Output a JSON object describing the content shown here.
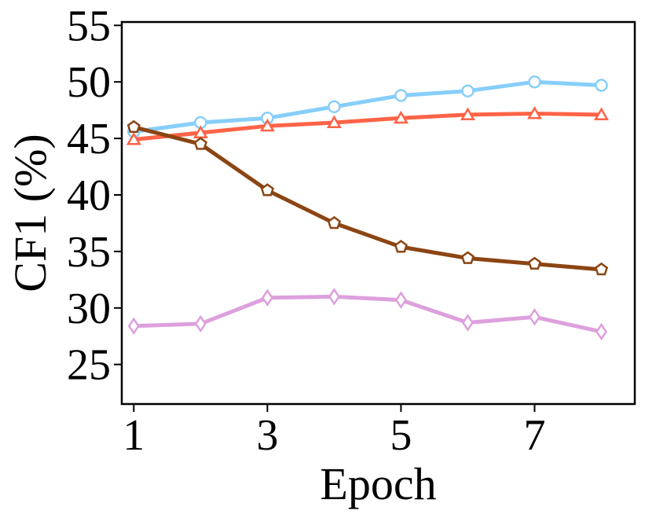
{
  "chart_data": {
    "type": "line",
    "title": "",
    "xlabel": "Epoch",
    "ylabel": "CF1 (%)",
    "x": [
      1,
      2,
      3,
      4,
      5,
      6,
      7,
      8
    ],
    "xticks": [
      1,
      3,
      5,
      7
    ],
    "yticks": [
      25,
      30,
      35,
      40,
      45,
      50,
      55
    ],
    "xlim": [
      0.82,
      8.5
    ],
    "ylim": [
      21.5,
      55.3
    ],
    "grid": false,
    "legend": "none",
    "series": [
      {
        "color": "#87CEFA",
        "marker": "circle",
        "values": [
          45.6,
          46.4,
          46.8,
          47.8,
          48.8,
          49.2,
          50.0,
          49.7
        ]
      },
      {
        "color": "#FF6347",
        "marker": "triangle",
        "values": [
          44.9,
          45.5,
          46.1,
          46.4,
          46.8,
          47.1,
          47.2,
          47.1
        ]
      },
      {
        "color": "#8B4513",
        "marker": "pentagon",
        "values": [
          46.0,
          44.5,
          40.4,
          37.5,
          35.4,
          34.4,
          33.9,
          33.4
        ]
      },
      {
        "color": "#DDA0DD",
        "marker": "diamond",
        "values": [
          28.4,
          28.6,
          30.9,
          31.0,
          30.7,
          28.7,
          29.2,
          27.9
        ]
      }
    ]
  }
}
